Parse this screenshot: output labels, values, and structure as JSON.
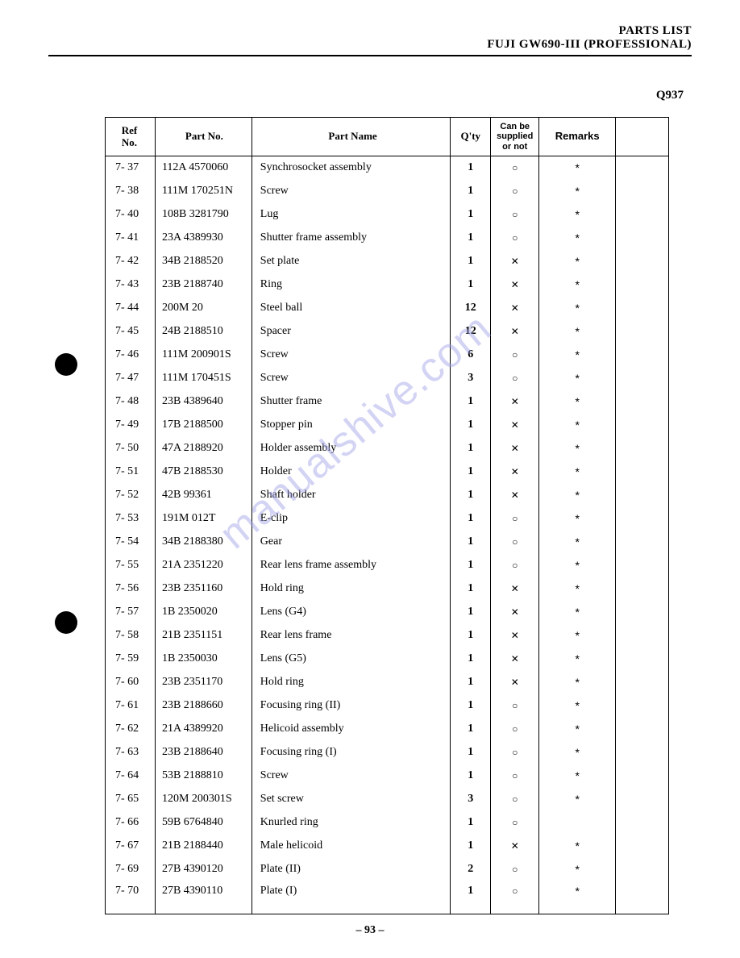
{
  "header": {
    "line1": "PARTS LIST",
    "line2": "FUJI GW690-III (PROFESSIONAL)"
  },
  "pageCode": "Q937",
  "watermark": "manualshive.com",
  "pageNumber": "– 93 –",
  "columns": {
    "ref": "Ref\nNo.",
    "partNo": "Part No.",
    "partName": "Part Name",
    "qty": "Q'ty",
    "supply": "Can be\nsupplied\nor not",
    "remarks": "Remarks"
  },
  "rows": [
    {
      "ref": "7- 37",
      "partNo": "112A 4570060",
      "partName": "Synchrosocket assembly",
      "qty": "1",
      "supply": "○",
      "remarks": "*"
    },
    {
      "ref": "7- 38",
      "partNo": "111M 170251N",
      "partName": "Screw",
      "qty": "1",
      "supply": "○",
      "remarks": "*"
    },
    {
      "ref": "7- 40",
      "partNo": "108B 3281790",
      "partName": "Lug",
      "qty": "1",
      "supply": "○",
      "remarks": "*"
    },
    {
      "ref": "7- 41",
      "partNo": "23A 4389930",
      "partName": "Shutter frame assembly",
      "qty": "1",
      "supply": "○",
      "remarks": "*"
    },
    {
      "ref": "7- 42",
      "partNo": "34B 2188520",
      "partName": "Set plate",
      "qty": "1",
      "supply": "✕",
      "remarks": "*"
    },
    {
      "ref": "7- 43",
      "partNo": "23B 2188740",
      "partName": "Ring",
      "qty": "1",
      "supply": "✕",
      "remarks": "*"
    },
    {
      "ref": "7- 44",
      "partNo": "200M 20",
      "partName": "Steel ball",
      "qty": "12",
      "supply": "✕",
      "remarks": "*"
    },
    {
      "ref": "7- 45",
      "partNo": "24B 2188510",
      "partName": "Spacer",
      "qty": "12",
      "supply": "✕",
      "remarks": "*"
    },
    {
      "ref": "7- 46",
      "partNo": "111M 200901S",
      "partName": "Screw",
      "qty": "6",
      "supply": "○",
      "remarks": "*"
    },
    {
      "ref": "7- 47",
      "partNo": "111M 170451S",
      "partName": "Screw",
      "qty": "3",
      "supply": "○",
      "remarks": "*"
    },
    {
      "ref": "7- 48",
      "partNo": "23B 4389640",
      "partName": "Shutter frame",
      "qty": "1",
      "supply": "✕",
      "remarks": "*"
    },
    {
      "ref": "7- 49",
      "partNo": "17B 2188500",
      "partName": "Stopper pin",
      "qty": "1",
      "supply": "✕",
      "remarks": "*"
    },
    {
      "ref": "7- 50",
      "partNo": "47A 2188920",
      "partName": "Holder assembly",
      "qty": "1",
      "supply": "✕",
      "remarks": "*"
    },
    {
      "ref": "7- 51",
      "partNo": "47B 2188530",
      "partName": "Holder",
      "qty": "1",
      "supply": "✕",
      "remarks": "*"
    },
    {
      "ref": "7- 52",
      "partNo": "42B 99361",
      "partName": "Shaft holder",
      "qty": "1",
      "supply": "✕",
      "remarks": "*"
    },
    {
      "ref": "7- 53",
      "partNo": "191M 012T",
      "partName": "E-clip",
      "qty": "1",
      "supply": "○",
      "remarks": "*"
    },
    {
      "ref": "7- 54",
      "partNo": "34B 2188380",
      "partName": "Gear",
      "qty": "1",
      "supply": "○",
      "remarks": "*"
    },
    {
      "ref": "7- 55",
      "partNo": "21A 2351220",
      "partName": "Rear lens frame assembly",
      "qty": "1",
      "supply": "○",
      "remarks": "*"
    },
    {
      "ref": "7- 56",
      "partNo": "23B 2351160",
      "partName": "Hold ring",
      "qty": "1",
      "supply": "✕",
      "remarks": "*"
    },
    {
      "ref": "7- 57",
      "partNo": "1B 2350020",
      "partName": "Lens (G4)",
      "qty": "1",
      "supply": "✕",
      "remarks": "*"
    },
    {
      "ref": "7- 58",
      "partNo": "21B 2351151",
      "partName": "Rear lens frame",
      "qty": "1",
      "supply": "✕",
      "remarks": "*"
    },
    {
      "ref": "7- 59",
      "partNo": "1B 2350030",
      "partName": "Lens (G5)",
      "qty": "1",
      "supply": "✕",
      "remarks": "*"
    },
    {
      "ref": "7- 60",
      "partNo": "23B 2351170",
      "partName": "Hold ring",
      "qty": "1",
      "supply": "✕",
      "remarks": "*"
    },
    {
      "ref": "7- 61",
      "partNo": "23B 2188660",
      "partName": "Focusing ring (II)",
      "qty": "1",
      "supply": "○",
      "remarks": "*"
    },
    {
      "ref": "7- 62",
      "partNo": "21A 4389920",
      "partName": "Helicoid assembly",
      "qty": "1",
      "supply": "○",
      "remarks": "*"
    },
    {
      "ref": "7- 63",
      "partNo": "23B 2188640",
      "partName": "Focusing ring (I)",
      "qty": "1",
      "supply": "○",
      "remarks": "*"
    },
    {
      "ref": "7- 64",
      "partNo": "53B 2188810",
      "partName": "Screw",
      "qty": "1",
      "supply": "○",
      "remarks": "*"
    },
    {
      "ref": "7- 65",
      "partNo": "120M 200301S",
      "partName": "Set screw",
      "qty": "3",
      "supply": "○",
      "remarks": "*"
    },
    {
      "ref": "7- 66",
      "partNo": "59B 6764840",
      "partName": "Knurled ring",
      "qty": "1",
      "supply": "○",
      "remarks": ""
    },
    {
      "ref": "7- 67",
      "partNo": "21B 2188440",
      "partName": "Male helicoid",
      "qty": "1",
      "supply": "✕",
      "remarks": "*"
    },
    {
      "ref": "7- 69",
      "partNo": "27B 4390120",
      "partName": "Plate (II)",
      "qty": "2",
      "supply": "○",
      "remarks": "*"
    },
    {
      "ref": "7- 70",
      "partNo": "27B 4390110",
      "partName": "Plate (I)",
      "qty": "1",
      "supply": "○",
      "remarks": "*"
    }
  ]
}
